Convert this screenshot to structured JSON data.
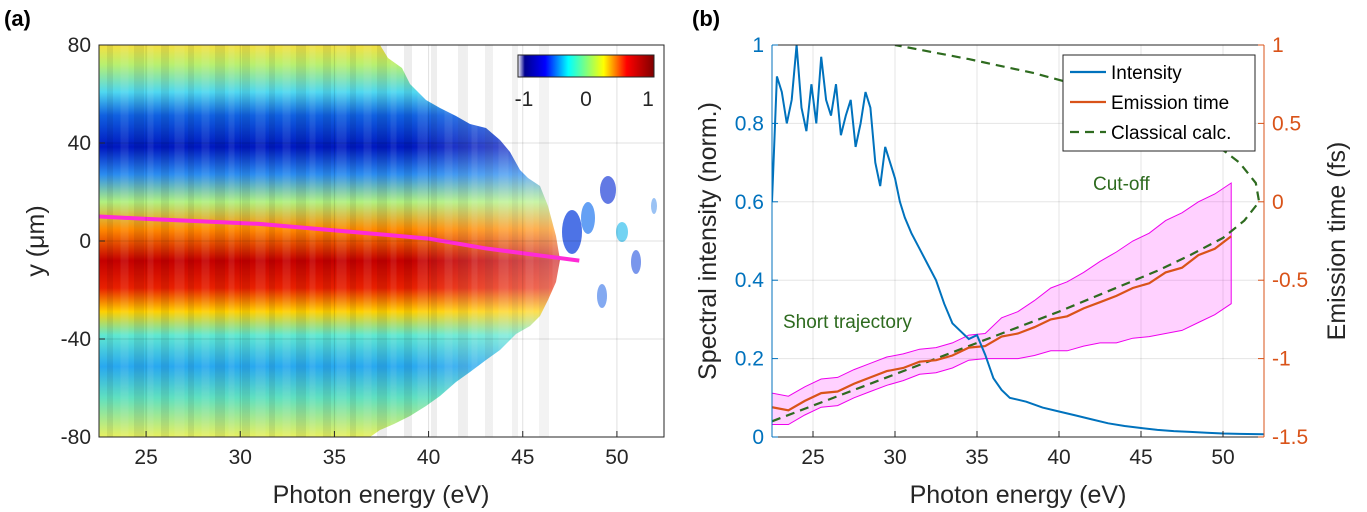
{
  "chart_data": [
    {
      "panel_label": "(a)",
      "type": "heatmap",
      "xlabel": "Photon energy (eV)",
      "ylabel": "y (μm)",
      "xlim": [
        22.5,
        52.5
      ],
      "ylim": [
        -80,
        80
      ],
      "xticks": [
        25,
        30,
        35,
        40,
        45,
        50
      ],
      "yticks": [
        -80,
        -40,
        0,
        40,
        80
      ],
      "colorbar": {
        "range": [
          -1,
          1
        ],
        "ticks": [
          "-1",
          "0",
          "1"
        ],
        "colormap": "jet"
      },
      "line_color": "#ff2bd6",
      "line_points": [
        [
          22.5,
          10
        ],
        [
          25,
          9
        ],
        [
          28,
          8
        ],
        [
          31,
          7
        ],
        [
          34,
          5
        ],
        [
          37,
          3
        ],
        [
          40,
          1
        ],
        [
          43,
          -3
        ],
        [
          46,
          -6
        ],
        [
          48,
          -8
        ]
      ]
    },
    {
      "panel_label": "(b)",
      "type": "line",
      "xlabel": "Photon energy (eV)",
      "ylabel_left": "Spectral intensity (norm.)",
      "ylabel_right": "Emission time (fs)",
      "xlim": [
        22.5,
        52.5
      ],
      "ylim_left": [
        0,
        1
      ],
      "ylim_right": [
        -1.5,
        1
      ],
      "xticks": [
        25,
        30,
        35,
        40,
        45,
        50
      ],
      "yticks_left": [
        "0",
        "0.2",
        "0.4",
        "0.6",
        "0.8",
        "1"
      ],
      "yticks_right": [
        "-1.5",
        "-1",
        "-0.5",
        "0",
        "0.5",
        "1"
      ],
      "left_color": "#0072bd",
      "right_color": "#d95319",
      "legend": {
        "placement": "top-right",
        "entries": [
          "Intensity",
          "Emission time",
          "Classical calc."
        ]
      },
      "annotations": {
        "cutoff": "Cut-off",
        "short": "Short trajectory"
      },
      "series": [
        {
          "name": "Intensity",
          "axis": "left",
          "color": "#0072bd",
          "x": [
            22.5,
            22.8,
            23.1,
            23.4,
            23.7,
            24.0,
            24.3,
            24.6,
            24.9,
            25.2,
            25.5,
            25.8,
            26.1,
            26.4,
            26.7,
            27.0,
            27.3,
            27.6,
            27.9,
            28.2,
            28.5,
            28.8,
            29.1,
            29.4,
            29.7,
            30.0,
            30.3,
            30.6,
            31.0,
            31.5,
            32.0,
            32.5,
            33.0,
            33.5,
            34.0,
            34.5,
            35.0,
            35.5,
            36.0,
            36.5,
            37.0,
            38.0,
            39.0,
            40.0,
            41.0,
            42.0,
            43.0,
            44.0,
            45.0,
            46.0,
            47.0,
            48.0,
            49.0,
            50.0,
            51.0,
            52.5
          ],
          "values": [
            0.6,
            0.92,
            0.88,
            0.8,
            0.86,
            1.0,
            0.84,
            0.78,
            0.9,
            0.8,
            0.97,
            0.86,
            0.82,
            0.9,
            0.77,
            0.82,
            0.86,
            0.74,
            0.8,
            0.88,
            0.84,
            0.7,
            0.64,
            0.74,
            0.7,
            0.66,
            0.6,
            0.56,
            0.52,
            0.48,
            0.44,
            0.4,
            0.34,
            0.29,
            0.27,
            0.25,
            0.26,
            0.21,
            0.15,
            0.12,
            0.1,
            0.09,
            0.075,
            0.065,
            0.055,
            0.045,
            0.035,
            0.028,
            0.023,
            0.018,
            0.015,
            0.013,
            0.011,
            0.009,
            0.008,
            0.007
          ]
        },
        {
          "name": "Emission time",
          "axis": "right",
          "color": "#d95319",
          "x": [
            22.5,
            23.5,
            24.5,
            25.5,
            26.5,
            27.5,
            28.5,
            29.5,
            30.5,
            31.5,
            32.5,
            33.5,
            34.5,
            35.5,
            36.5,
            37.5,
            38.5,
            39.5,
            40.5,
            41.5,
            42.5,
            43.5,
            44.5,
            45.5,
            46.5,
            47.5,
            48.5,
            49.5,
            50.5
          ],
          "values": [
            -1.31,
            -1.33,
            -1.27,
            -1.22,
            -1.21,
            -1.16,
            -1.12,
            -1.08,
            -1.06,
            -1.02,
            -1.01,
            -0.98,
            -0.93,
            -0.92,
            -0.86,
            -0.84,
            -0.8,
            -0.75,
            -0.73,
            -0.68,
            -0.64,
            -0.6,
            -0.55,
            -0.52,
            -0.45,
            -0.42,
            -0.34,
            -0.3,
            -0.22
          ],
          "lower": [
            -1.42,
            -1.42,
            -1.36,
            -1.31,
            -1.3,
            -1.25,
            -1.21,
            -1.17,
            -1.14,
            -1.1,
            -1.09,
            -1.06,
            -1.01,
            -1.0,
            -1.0,
            -1.0,
            -0.98,
            -0.95,
            -0.95,
            -0.92,
            -0.9,
            -0.9,
            -0.87,
            -0.86,
            -0.84,
            -0.82,
            -0.77,
            -0.72,
            -0.65
          ],
          "upper": [
            -1.22,
            -1.24,
            -1.18,
            -1.13,
            -1.12,
            -1.07,
            -1.03,
            -0.99,
            -0.97,
            -0.94,
            -0.93,
            -0.9,
            -0.85,
            -0.84,
            -0.74,
            -0.7,
            -0.63,
            -0.55,
            -0.51,
            -0.45,
            -0.38,
            -0.32,
            -0.25,
            -0.2,
            -0.12,
            -0.07,
            0.0,
            0.05,
            0.12
          ]
        },
        {
          "name": "Classical calc.",
          "axis": "right",
          "color": "#2e6b1f",
          "dash": true,
          "x": [
            22.5,
            25,
            28,
            31,
            34,
            37,
            40,
            43,
            46,
            48,
            50,
            51.3,
            52.2,
            52.0,
            51.0,
            49.5,
            47.5,
            45.0,
            42.0,
            38.5,
            34.5,
            30.0
          ],
          "values": [
            -1.4,
            -1.3,
            -1.18,
            -1.06,
            -0.94,
            -0.82,
            -0.7,
            -0.57,
            -0.44,
            -0.34,
            -0.23,
            -0.12,
            0.0,
            0.12,
            0.25,
            0.37,
            0.5,
            0.61,
            0.72,
            0.82,
            0.91,
            1.0
          ]
        }
      ]
    }
  ]
}
